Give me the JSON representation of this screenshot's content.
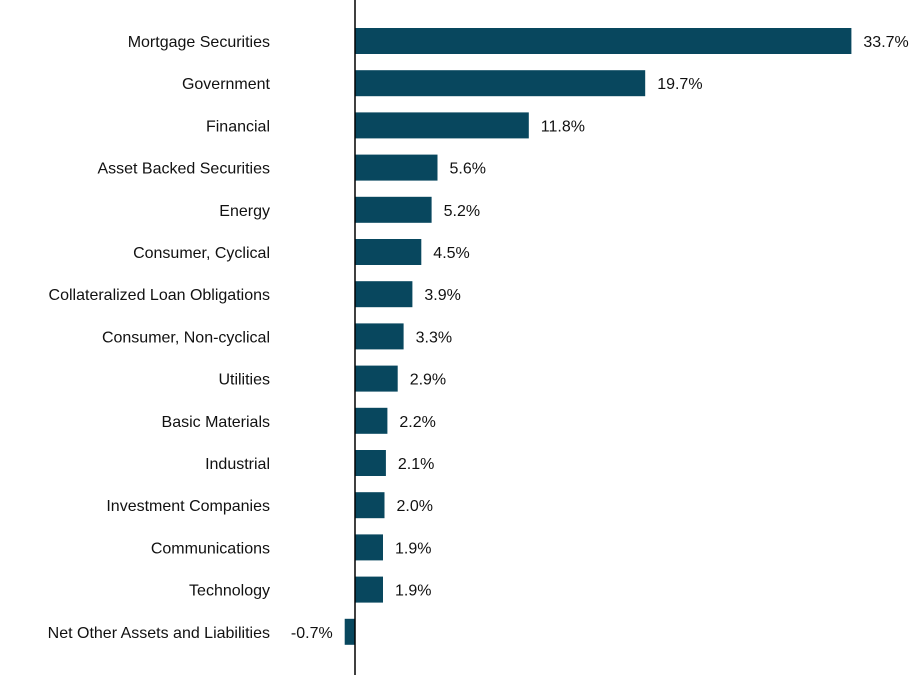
{
  "chart_data": {
    "type": "bar",
    "orientation": "horizontal",
    "title": "",
    "xlabel": "",
    "ylabel": "",
    "bar_color": "#08475e",
    "categories": [
      "Mortgage Securities",
      "Government",
      "Financial",
      "Asset Backed Securities",
      "Energy",
      "Consumer, Cyclical",
      "Collateralized Loan Obligations",
      "Consumer, Non-cyclical",
      "Utilities",
      "Basic Materials",
      "Industrial",
      "Investment Companies",
      "Communications",
      "Technology",
      "Net Other Assets and Liabilities"
    ],
    "values": [
      33.7,
      19.7,
      11.8,
      5.6,
      5.2,
      4.5,
      3.9,
      3.3,
      2.9,
      2.2,
      2.1,
      2.0,
      1.9,
      1.9,
      -0.7
    ],
    "data_labels": [
      "33.7%",
      "19.7%",
      "11.8%",
      "5.6%",
      "5.2%",
      "4.5%",
      "3.9%",
      "3.3%",
      "2.9%",
      "2.2%",
      "2.1%",
      "2.0%",
      "1.9%",
      "1.9%",
      "-0.7%"
    ],
    "xlim": [
      -0.7,
      33.7
    ],
    "grid": false,
    "legend": "none"
  }
}
